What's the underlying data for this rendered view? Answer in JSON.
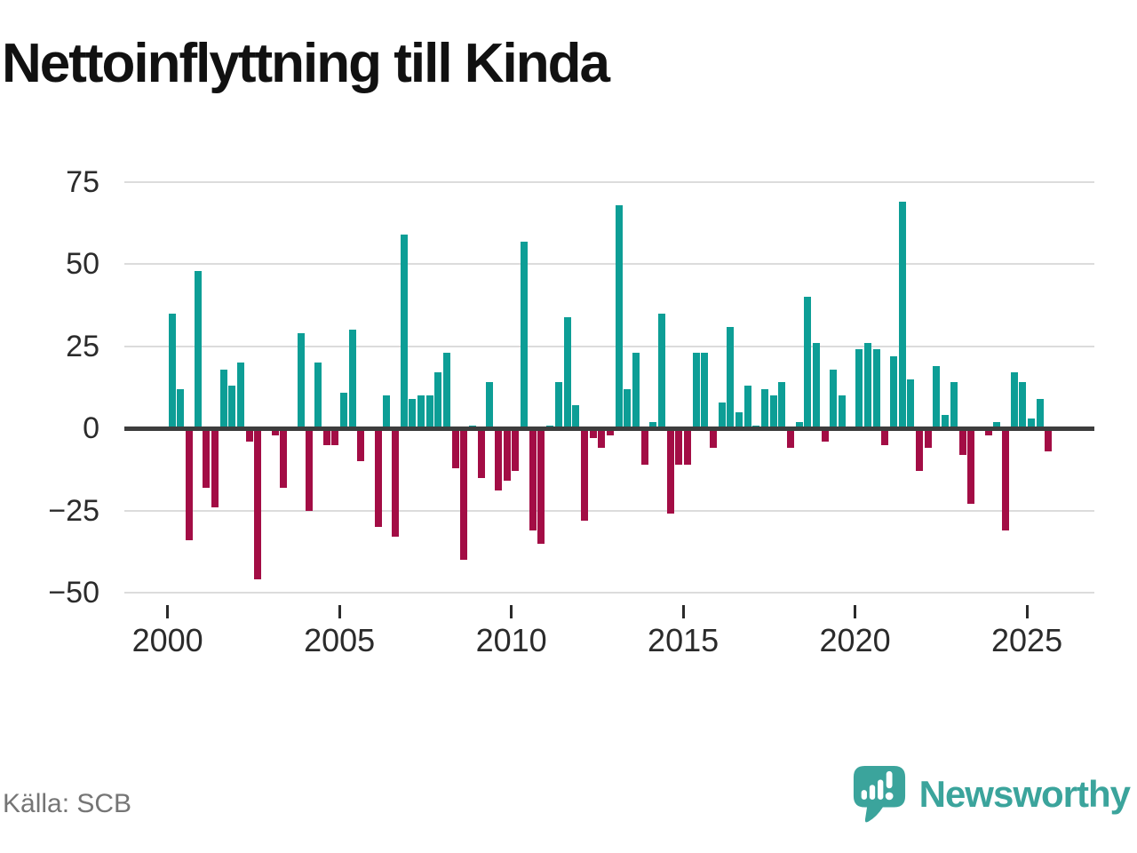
{
  "title": "Nettoinflyttning till Kinda",
  "source": "Källa: SCB",
  "logo": {
    "text": "Newsworthy"
  },
  "colors": {
    "positive": "#0d9e96",
    "negative": "#a30d45",
    "baseline": "#3d3d3d",
    "gridline": "#dcdcdc",
    "brand": "#3ba49c"
  },
  "chart_data": {
    "type": "bar",
    "title": "Nettoinflyttning till Kinda",
    "xlabel": "",
    "ylabel": "",
    "ylim": [
      -50,
      75
    ],
    "y_ticks": [
      75,
      50,
      25,
      0,
      -25,
      -50
    ],
    "y_tick_labels": [
      "75",
      "50",
      "25",
      "0",
      "−25",
      "−50"
    ],
    "x_tick_years": [
      2000,
      2005,
      2010,
      2015,
      2020,
      2025
    ],
    "x_tick_labels": [
      "2000",
      "2005",
      "2010",
      "2015",
      "2020",
      "2025"
    ],
    "grid": "horizontal",
    "legend": "none",
    "frequency": "quarterly",
    "categories": [
      "2000Q1",
      "2000Q2",
      "2000Q3",
      "2000Q4",
      "2001Q1",
      "2001Q2",
      "2001Q3",
      "2001Q4",
      "2002Q1",
      "2002Q2",
      "2002Q3",
      "2002Q4",
      "2003Q1",
      "2003Q2",
      "2003Q3",
      "2003Q4",
      "2004Q1",
      "2004Q2",
      "2004Q3",
      "2004Q4",
      "2005Q1",
      "2005Q2",
      "2005Q3",
      "2005Q4",
      "2006Q1",
      "2006Q2",
      "2006Q3",
      "2006Q4",
      "2007Q1",
      "2007Q2",
      "2007Q3",
      "2007Q4",
      "2008Q1",
      "2008Q2",
      "2008Q3",
      "2008Q4",
      "2009Q1",
      "2009Q2",
      "2009Q3",
      "2009Q4",
      "2010Q1",
      "2010Q2",
      "2010Q3",
      "2010Q4",
      "2011Q1",
      "2011Q2",
      "2011Q3",
      "2011Q4",
      "2012Q1",
      "2012Q2",
      "2012Q3",
      "2012Q4",
      "2013Q1",
      "2013Q2",
      "2013Q3",
      "2013Q4",
      "2014Q1",
      "2014Q2",
      "2014Q3",
      "2014Q4",
      "2015Q1",
      "2015Q2",
      "2015Q3",
      "2015Q4",
      "2016Q1",
      "2016Q2",
      "2016Q3",
      "2016Q4",
      "2017Q1",
      "2017Q2",
      "2017Q3",
      "2017Q4",
      "2018Q1",
      "2018Q2",
      "2018Q3",
      "2018Q4",
      "2019Q1",
      "2019Q2",
      "2019Q3",
      "2019Q4",
      "2020Q1",
      "2020Q2",
      "2020Q3",
      "2020Q4",
      "2021Q1",
      "2021Q2",
      "2021Q3",
      "2021Q4",
      "2022Q1",
      "2022Q2",
      "2022Q3",
      "2022Q4",
      "2023Q1",
      "2023Q2",
      "2023Q3",
      "2023Q4",
      "2024Q1",
      "2024Q2",
      "2024Q3",
      "2024Q4",
      "2025Q1",
      "2025Q2",
      "2025Q3"
    ],
    "values": [
      35,
      12,
      -34,
      48,
      -18,
      -24,
      18,
      13,
      20,
      -4,
      -46,
      0,
      -2,
      -18,
      0,
      29,
      -25,
      20,
      -5,
      -5,
      11,
      30,
      -10,
      0,
      -30,
      10,
      -33,
      59,
      9,
      10,
      10,
      17,
      23,
      -12,
      -40,
      1,
      -15,
      14,
      -19,
      -16,
      -13,
      57,
      -31,
      -35,
      1,
      14,
      34,
      7,
      -28,
      -3,
      -6,
      -2,
      68,
      12,
      23,
      -11,
      2,
      35,
      -26,
      -11,
      -11,
      23,
      23,
      -6,
      8,
      31,
      5,
      13,
      1,
      12,
      10,
      14,
      -6,
      2,
      40,
      26,
      -4,
      18,
      10,
      0,
      24,
      26,
      24,
      -5,
      22,
      69,
      15,
      -13,
      -6,
      19,
      4,
      14,
      -8,
      -23,
      0,
      -2,
      2,
      -31,
      17,
      14,
      3,
      9,
      -7
    ]
  }
}
